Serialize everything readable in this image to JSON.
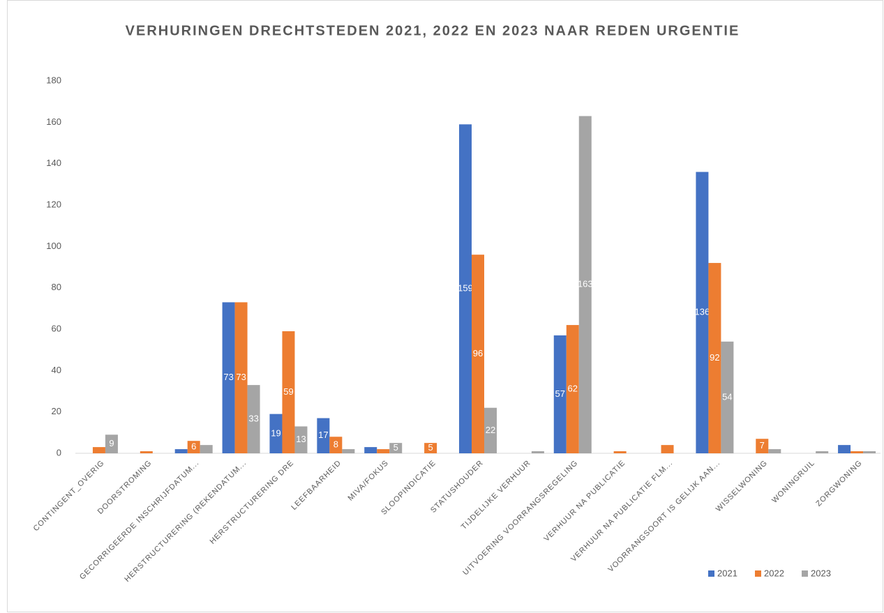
{
  "chart_data": {
    "type": "bar",
    "title": "VERHURINGEN DRECHTSTEDEN 2021, 2022 EN 2023 NAAR REDEN URGENTIE",
    "categories": [
      "CONTINGENT_OVERIG",
      "DOORSTROMING",
      "GECORRIGEERDE INSCHRIJFDATUM...",
      "HERSTRUCTURERING (REKENDATUM...",
      "HERSTRUCTURERING DRE",
      "LEEFBAARHEID",
      "MIVA/FOKUS",
      "SLOOPINDICATIE",
      "STATUSHOUDER",
      "TIJDELIJKE VERHUUR",
      "UITVOERING VOORRANGSREGELING",
      "VERHUUR NA PUBLICATIE",
      "VERHUUR NA PUBLICATIE FLM...",
      "VOORRANGSOORT IS GELIJK AAN...",
      "WISSELWONING",
      "WONINGRUIL",
      "ZORGWONING"
    ],
    "series": [
      {
        "name": "2021",
        "color": "#4472c4",
        "values": [
          null,
          null,
          2,
          73,
          19,
          17,
          3,
          null,
          159,
          null,
          57,
          null,
          null,
          136,
          null,
          null,
          4
        ]
      },
      {
        "name": "2022",
        "color": "#ed7d31",
        "values": [
          3,
          1,
          6,
          73,
          59,
          8,
          2,
          5,
          96,
          null,
          62,
          1,
          4,
          92,
          7,
          null,
          1
        ]
      },
      {
        "name": "2023",
        "color": "#a5a5a5",
        "values": [
          9,
          null,
          4,
          33,
          13,
          2,
          5,
          null,
          22,
          1,
          163,
          null,
          null,
          54,
          2,
          1,
          1
        ]
      }
    ],
    "ylim": [
      0,
      180
    ],
    "yticks": [
      0,
      20,
      40,
      60,
      80,
      100,
      120,
      140,
      160,
      180
    ],
    "grid": false,
    "legend": "bottom-right"
  }
}
